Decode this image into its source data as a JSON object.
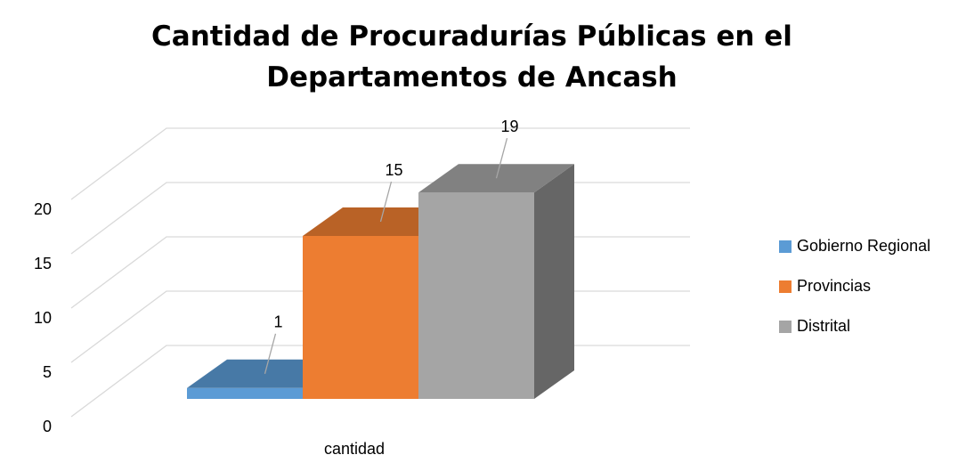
{
  "chart_data": {
    "type": "bar3d",
    "title": "Cantidad de Procuradurías Públicas en el Departamentos de Ancash",
    "categories": [
      "cantidad"
    ],
    "series": [
      {
        "name": "Gobierno Regional",
        "color": "#5b9bd5",
        "values": [
          1
        ]
      },
      {
        "name": "Provincias",
        "color": "#ed7d31",
        "values": [
          15
        ]
      },
      {
        "name": "Distrital",
        "color": "#a5a5a5",
        "values": [
          19
        ]
      }
    ],
    "ylim": [
      0,
      20
    ],
    "yticks": [
      0,
      5,
      10,
      15,
      20
    ],
    "grid": true,
    "legend": "right"
  }
}
